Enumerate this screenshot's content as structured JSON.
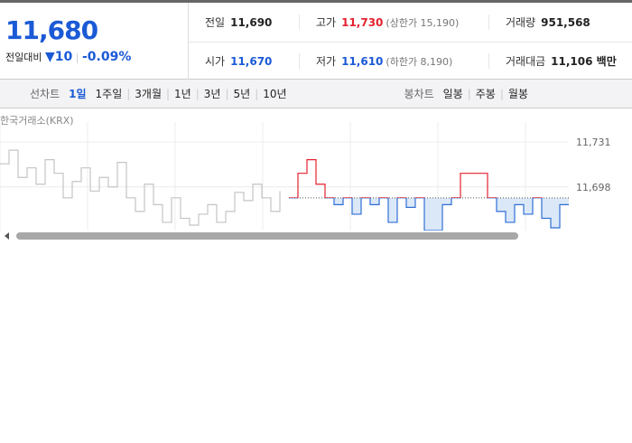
{
  "header": {
    "price": "11,680",
    "change_label": "전일대비",
    "change": "10",
    "change_rate": "-0.09%"
  },
  "stats": [
    [
      {
        "label": "전일",
        "value": "11,690"
      },
      {
        "label": "고가",
        "value": "11,730",
        "note": "(상한가 15,190)"
      },
      {
        "label": "거래량",
        "value": "951,568"
      }
    ],
    [
      {
        "label": "시가",
        "value": "11,670"
      },
      {
        "label": "저가",
        "value": "11,610",
        "note": "(하한가 8,190)"
      },
      {
        "label": "거래대금",
        "value": "11,106 백만"
      }
    ]
  ],
  "toolbar": {
    "line_label": "선차트",
    "line_periods": [
      "1일",
      "1주일",
      "3개월",
      "1년",
      "3년",
      "5년",
      "10년"
    ],
    "selected": 0,
    "candle_label": "봉차트",
    "candle_periods": [
      "일봉",
      "주봉",
      "월봉"
    ]
  },
  "chart_data": {
    "type": "line",
    "source": "한국거래소(KRX)",
    "ylim": [
      11666,
      11739
    ],
    "yticks": [
      {
        "value": 11731,
        "label": "11,731"
      },
      {
        "value": 11698,
        "label": "11,698"
      }
    ],
    "base": 11690,
    "up_color": "#e5222e",
    "down_color": "#2f6fd6",
    "area_color": "#dbe8f8",
    "series": [
      {
        "color": "#c4c4c8",
        "values": [
          11715,
          11725,
          11705,
          11712,
          11700,
          11718,
          11708,
          11690,
          11702,
          11712,
          11695,
          11705,
          11698,
          11716,
          11690,
          11680,
          11700,
          11685,
          11672,
          11690,
          11675,
          11670,
          11678,
          11685,
          11672,
          11680,
          11694,
          11688,
          11700,
          11690,
          11680,
          11695,
          null,
          null,
          null,
          null,
          null,
          null,
          null,
          null,
          null,
          null,
          null,
          null,
          null,
          null,
          null,
          null,
          null,
          null,
          null,
          null,
          null,
          null,
          null,
          null,
          null,
          null,
          null,
          null,
          null,
          null,
          null,
          null
        ]
      },
      {
        "color": "#2f6fd6",
        "values": [
          null,
          null,
          null,
          null,
          null,
          null,
          null,
          null,
          null,
          null,
          null,
          null,
          null,
          null,
          null,
          null,
          null,
          null,
          null,
          null,
          null,
          null,
          null,
          null,
          null,
          null,
          null,
          null,
          null,
          null,
          null,
          null,
          11690,
          11708,
          11718,
          11700,
          11690,
          11685,
          11690,
          11678,
          11690,
          11685,
          11690,
          11672,
          11690,
          11683,
          11690,
          11666,
          11666,
          11685,
          11690,
          11708,
          11708,
          11708,
          11690,
          11680,
          11672,
          11685,
          11678,
          11690,
          11675,
          11668,
          11685,
          11685
        ]
      }
    ]
  }
}
